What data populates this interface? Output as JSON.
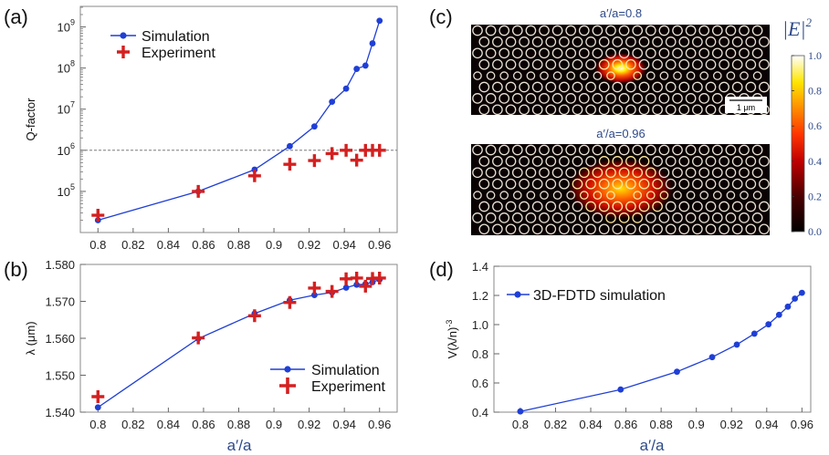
{
  "chart_data": [
    {
      "panel": "(a)",
      "type": "scatter",
      "ylabel": "Q-factor",
      "xlabel": "",
      "yscale": "log",
      "xlim": [
        0.79,
        0.97
      ],
      "ylim_exp": [
        4,
        9.5
      ],
      "xticks": [
        "0.8",
        "0.82",
        "0.84",
        "0.86",
        "0.88",
        "0.9",
        "0.92",
        "0.94",
        "0.96"
      ],
      "yticks": [
        {
          "base": "10",
          "exp": "5"
        },
        {
          "base": "10",
          "exp": "6"
        },
        {
          "base": "10",
          "exp": "7"
        },
        {
          "base": "10",
          "exp": "8"
        },
        {
          "base": "10",
          "exp": "9"
        }
      ],
      "reference_line": {
        "y_exp": 6,
        "style": "dashed"
      },
      "legend": {
        "placement": "top-left",
        "entries": [
          "Simulation",
          "Experiment"
        ]
      },
      "series": [
        {
          "name": "Simulation",
          "style": "line-marker",
          "color": "#1f3fd6",
          "x": [
            0.8,
            0.857,
            0.889,
            0.909,
            0.923,
            0.933,
            0.941,
            0.947,
            0.952,
            0.956,
            0.96
          ],
          "y_exp": [
            4.3,
            5.0,
            5.53,
            6.1,
            6.58,
            7.18,
            7.5,
            7.98,
            8.06,
            8.6,
            9.15
          ]
        },
        {
          "name": "Experiment",
          "style": "plus",
          "color": "#d42020",
          "x": [
            0.8,
            0.857,
            0.889,
            0.909,
            0.923,
            0.933,
            0.941,
            0.947,
            0.952,
            0.956,
            0.96
          ],
          "y_exp": [
            4.42,
            5.0,
            5.38,
            5.66,
            5.75,
            5.92,
            6.0,
            5.76,
            6.0,
            6.0,
            6.0
          ]
        }
      ]
    },
    {
      "panel": "(b)",
      "type": "scatter",
      "ylabel": "λ (μm)",
      "xlabel": "a′/a",
      "xlim": [
        0.79,
        0.97
      ],
      "ylim": [
        1.54,
        1.58
      ],
      "xticks": [
        "0.8",
        "0.82",
        "0.84",
        "0.86",
        "0.88",
        "0.9",
        "0.92",
        "0.94",
        "0.96"
      ],
      "yticks": [
        "1.540",
        "1.550",
        "1.560",
        "1.570",
        "1.580"
      ],
      "legend": {
        "placement": "bottom-right",
        "entries": [
          "Simulation",
          "Experiment"
        ]
      },
      "series": [
        {
          "name": "Simulation",
          "style": "line-marker",
          "color": "#1f3fd6",
          "x": [
            0.8,
            0.857,
            0.889,
            0.909,
            0.923,
            0.933,
            0.941,
            0.947,
            0.952,
            0.956,
            0.96
          ],
          "y": [
            1.5413,
            1.5599,
            1.5667,
            1.5703,
            1.5717,
            1.5724,
            1.5737,
            1.5745,
            1.5747,
            1.5752,
            1.5759
          ]
        },
        {
          "name": "Experiment",
          "style": "plus",
          "color": "#d42020",
          "x": [
            0.8,
            0.857,
            0.889,
            0.909,
            0.923,
            0.933,
            0.941,
            0.947,
            0.952,
            0.956,
            0.96
          ],
          "y": [
            1.5442,
            1.5601,
            1.5661,
            1.5697,
            1.5736,
            1.5727,
            1.5761,
            1.5763,
            1.5741,
            1.5762,
            1.5763
          ]
        }
      ]
    },
    {
      "panel": "(c)",
      "type": "heatmap",
      "maps": [
        {
          "title": "a′/a=0.8",
          "scalebar": "1 μm",
          "hotspot_extent": "small"
        },
        {
          "title": "a′/a=0.96",
          "hotspot_extent": "large"
        }
      ],
      "colorbar": {
        "label_text": "|E|",
        "label_sup": "2",
        "ticks": [
          "0.0",
          "0.2",
          "0.4",
          "0.6",
          "0.8",
          "1.0"
        ],
        "range": [
          0,
          1
        ]
      }
    },
    {
      "panel": "(d)",
      "type": "line",
      "ylabel": "V(λ/n)",
      "ylabel_sup": "-3",
      "xlabel": "a′/a",
      "xlim": [
        0.785,
        0.965
      ],
      "ylim": [
        0.4,
        1.4
      ],
      "xticks": [
        "0.8",
        "0.82",
        "0.84",
        "0.86",
        "0.88",
        "0.9",
        "0.92",
        "0.94",
        "0.96"
      ],
      "yticks": [
        "0.4",
        "0.6",
        "0.8",
        "1.0",
        "1.2",
        "1.4"
      ],
      "legend": {
        "placement": "top-left",
        "entries": [
          "3D-FDTD simulation"
        ]
      },
      "series": [
        {
          "name": "3D-FDTD simulation",
          "style": "line-marker",
          "color": "#1f3fd6",
          "x": [
            0.8,
            0.857,
            0.889,
            0.909,
            0.923,
            0.933,
            0.941,
            0.947,
            0.952,
            0.956,
            0.96
          ],
          "y": [
            0.405,
            0.555,
            0.677,
            0.777,
            0.863,
            0.938,
            1.002,
            1.067,
            1.123,
            1.178,
            1.218
          ]
        }
      ]
    }
  ]
}
